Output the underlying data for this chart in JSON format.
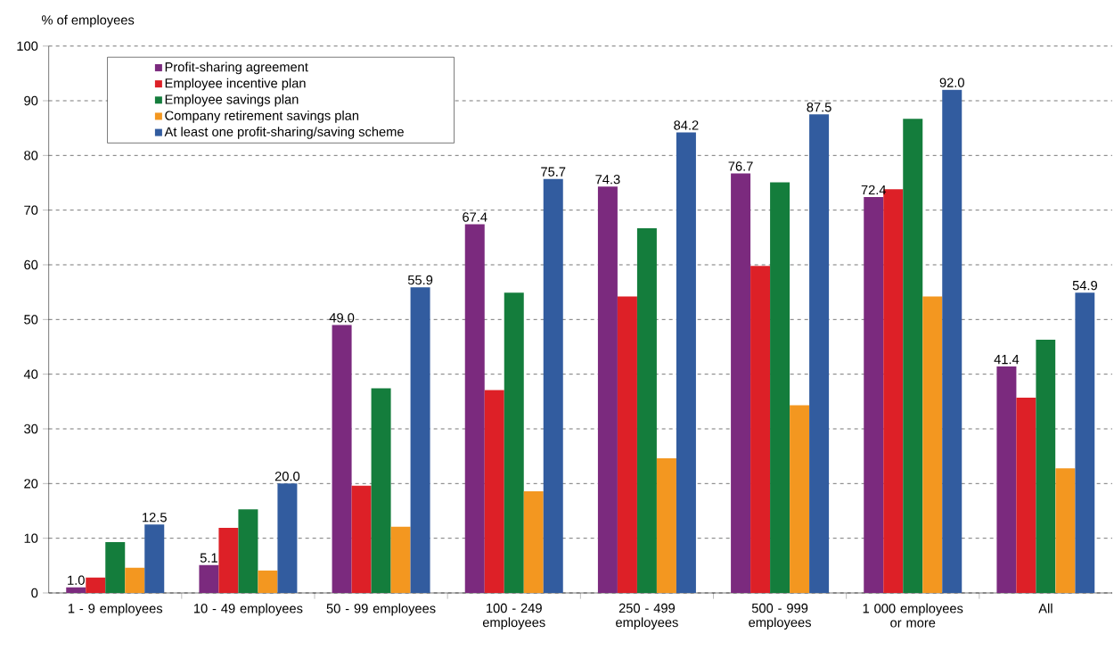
{
  "chart_data": {
    "type": "bar",
    "ylabel": "% of employees",
    "categories": [
      "1 - 9 employees",
      "10 - 49 employees",
      "50 - 99 employees",
      "100 - 249 employees",
      "250 - 499 employees",
      "500 - 999 employees",
      "1 000 employees or more",
      "All"
    ],
    "series": [
      {
        "name": "Profit-sharing agreement",
        "color": "#7b2a7e",
        "values": [
          1.0,
          5.1,
          49.0,
          67.4,
          74.3,
          76.7,
          72.4,
          41.4
        ],
        "value_labels": [
          "1.0",
          "5.1",
          "49.0",
          "67.4",
          "74.3",
          "76.7",
          "72.4",
          "41.4"
        ]
      },
      {
        "name": "Employee incentive plan",
        "color": "#dd2027",
        "values": [
          2.8,
          11.9,
          19.6,
          37.1,
          54.2,
          59.8,
          73.8,
          35.7
        ]
      },
      {
        "name": "Employee savings plan",
        "color": "#147d3c",
        "values": [
          9.3,
          15.3,
          37.4,
          54.9,
          66.7,
          75.1,
          86.7,
          46.3
        ]
      },
      {
        "name": "Company retirement savings plan",
        "color": "#f39720",
        "values": [
          4.6,
          4.1,
          12.1,
          18.6,
          24.6,
          34.3,
          54.2,
          22.8
        ]
      },
      {
        "name": "At least one profit-sharing/saving scheme",
        "color": "#325c9f",
        "values": [
          12.5,
          20.0,
          55.9,
          75.7,
          84.2,
          87.5,
          92.0,
          54.9
        ],
        "value_labels": [
          "12.5",
          "20.0",
          "55.9",
          "75.7",
          "84.2",
          "87.5",
          "92.0",
          "54.9"
        ]
      }
    ],
    "ylim": [
      0,
      100
    ],
    "yticks": [
      0,
      10,
      20,
      30,
      40,
      50,
      60,
      70,
      80,
      90,
      100
    ],
    "grid": "y",
    "legend": "top left"
  }
}
